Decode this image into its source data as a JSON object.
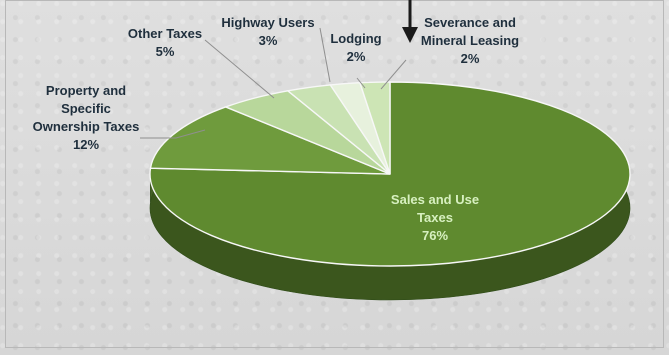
{
  "chart_data": {
    "type": "pie",
    "title": "",
    "slices": [
      {
        "name": "Sales and Use Taxes",
        "value": 76,
        "label": "Sales and Use\nTaxes\n76%",
        "color": "#5f8a2f"
      },
      {
        "name": "Property and Specific Ownership Taxes",
        "value": 12,
        "label": "Property and\nSpecific\nOwnership Taxes\n12%",
        "color": "#6f9b3d"
      },
      {
        "name": "Other Taxes",
        "value": 5,
        "label": "Other Taxes\n5%",
        "color": "#b8d79b"
      },
      {
        "name": "Highway Users",
        "value": 3,
        "label": "Highway Users\n3%",
        "color": "#c9e2b3"
      },
      {
        "name": "Lodging",
        "value": 2,
        "label": "Lodging\n2%",
        "color": "#e7f1dd"
      },
      {
        "name": "Severance and Mineral Leasing",
        "value": 2,
        "label": "Severance and\nMineral Leasing\n2%",
        "color": "#cde5b5"
      }
    ],
    "legend": "none",
    "grid": false
  },
  "colors": {
    "depth_shadow": "#3b5e1e",
    "arrow": "#1a1a1a",
    "inside_text": "#d7f0c0",
    "outside_text": "#1f2f3d"
  }
}
